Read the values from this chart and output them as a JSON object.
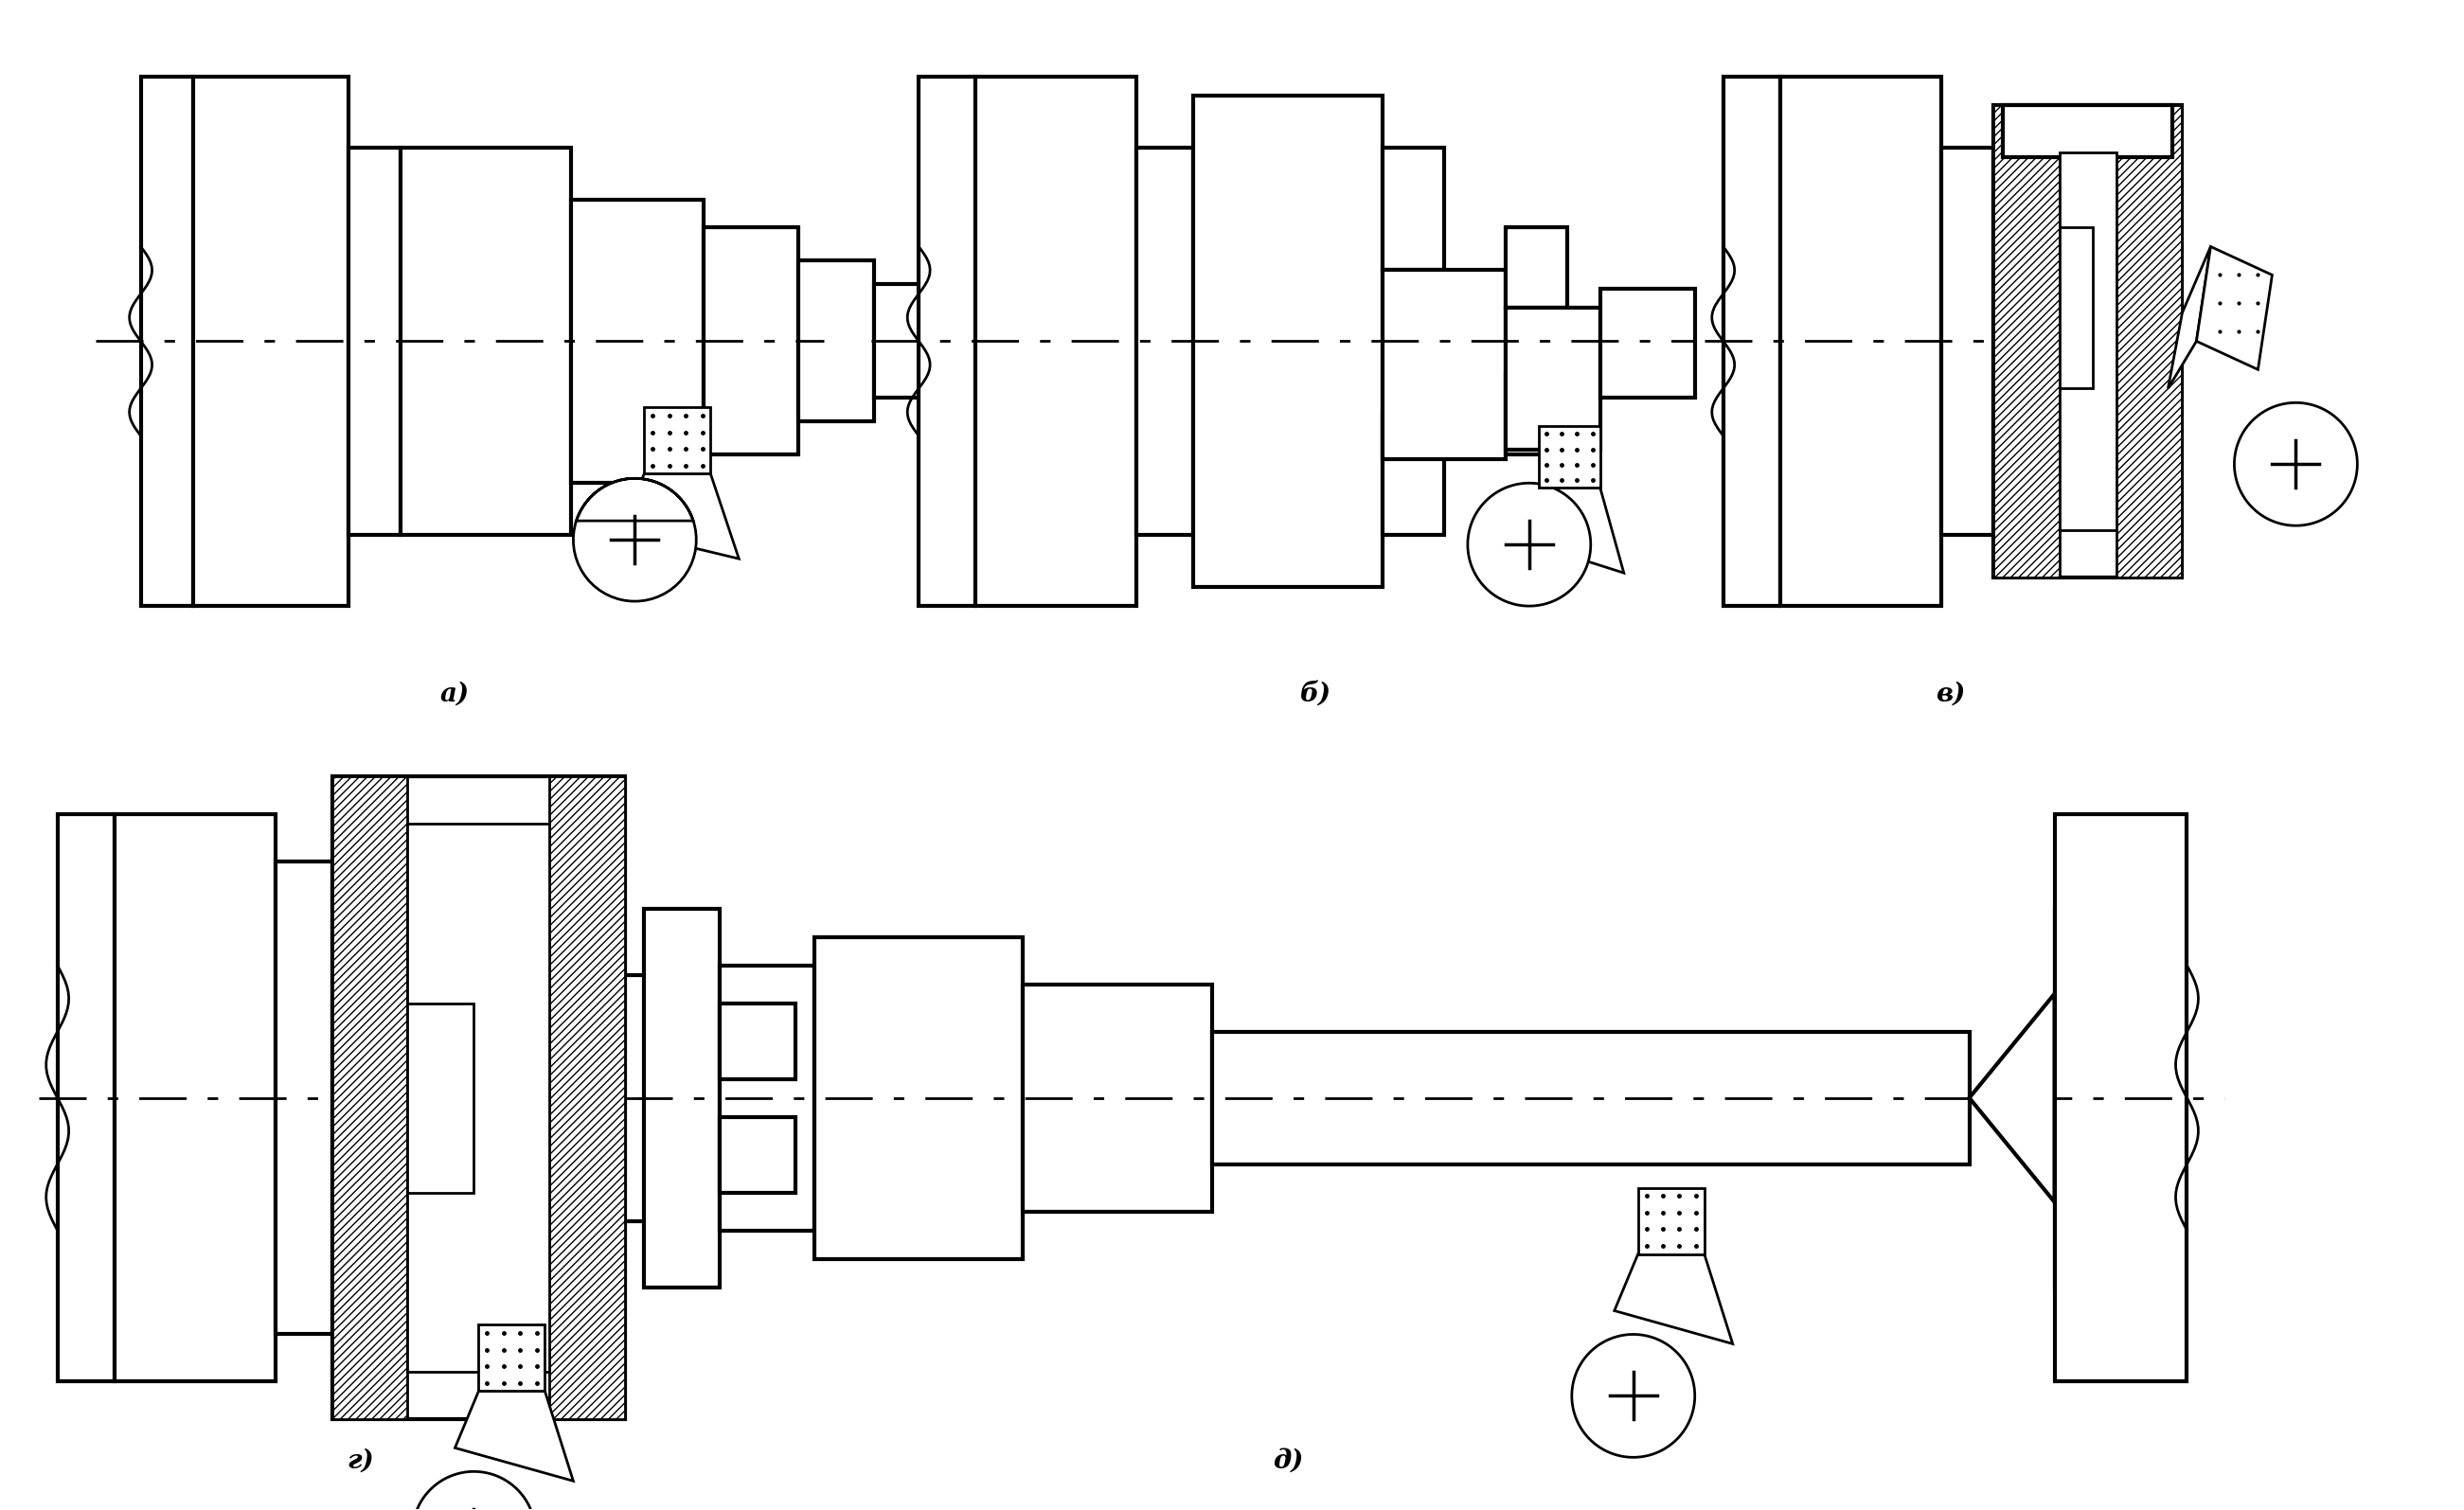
{
  "background_color": "#ffffff",
  "line_color": "#000000",
  "labels": [
    "а)",
    "б)",
    "в)",
    "г)",
    "д)"
  ],
  "label_fontsize": 20,
  "figsize": [
    26.02,
    15.95
  ]
}
